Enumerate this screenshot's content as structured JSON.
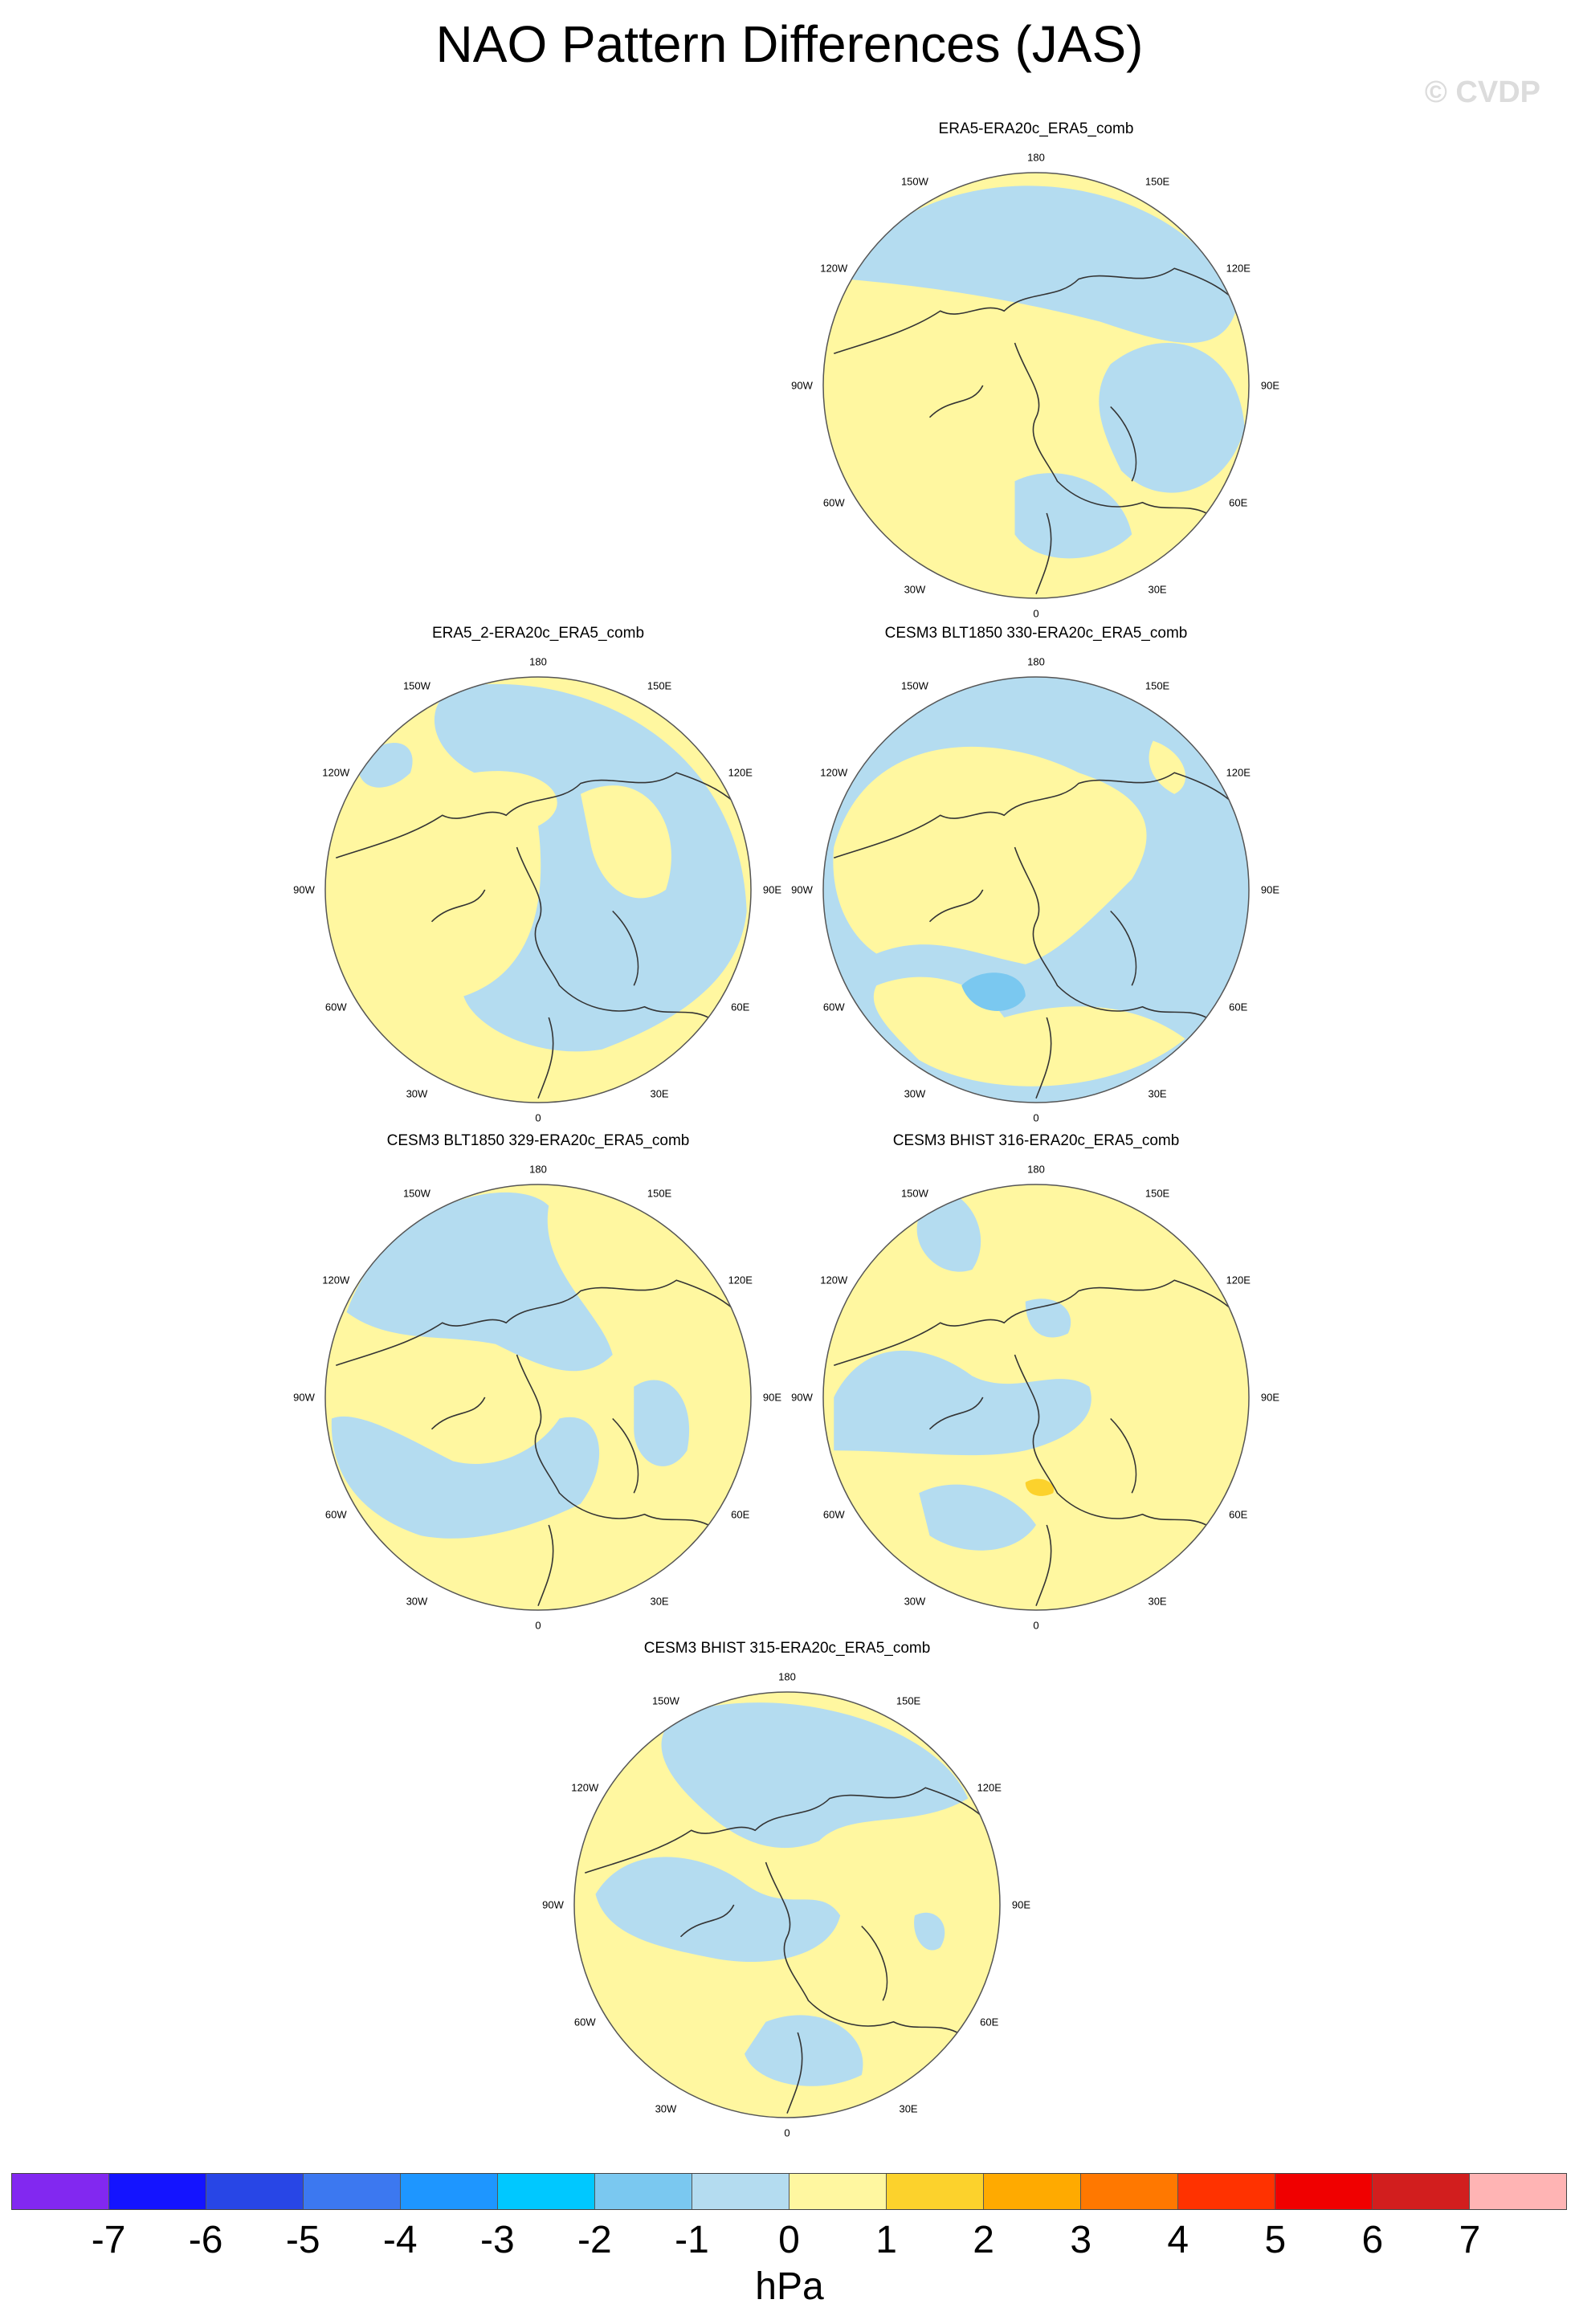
{
  "figure": {
    "title": "NAO Pattern Differences (JAS)",
    "watermark": "© CVDP"
  },
  "lon_labels": {
    "top": "180",
    "bottom": "0",
    "left": "90W",
    "right": "90E",
    "upper_left": "150W",
    "upper_right": "150E",
    "mid_upper_left": "120W",
    "mid_upper_right": "120E",
    "mid_lower_left": "60W",
    "mid_lower_right": "60E",
    "lower_left": "30W",
    "lower_right": "30E"
  },
  "panels": [
    {
      "title": "ERA5-ERA20c_ERA5_comb",
      "pattern": "a"
    },
    {
      "title": "ERA5_2-ERA20c_ERA5_comb",
      "pattern": "b"
    },
    {
      "title": "CESM3 BLT1850 330-ERA20c_ERA5_comb",
      "pattern": "c"
    },
    {
      "title": "CESM3 BLT1850 329-ERA20c_ERA5_comb",
      "pattern": "d"
    },
    {
      "title": "CESM3 BHIST 316-ERA20c_ERA5_comb",
      "pattern": "e"
    },
    {
      "title": "CESM3 BHIST 315-ERA20c_ERA5_comb",
      "pattern": "f"
    }
  ],
  "colors": {
    "positive_small": "#fff7a0",
    "negative_small": "#b4dcf0",
    "neg_2": "#7ac8f0",
    "pos_2": "#fcd22c",
    "coast": "#333333"
  },
  "colorbar": {
    "units": "hPa",
    "colors": [
      "#8228f0",
      "#1414ff",
      "#2846e6",
      "#3c78f0",
      "#1e96ff",
      "#00c8ff",
      "#7ac8f0",
      "#b4dcf0",
      "#fff7a0",
      "#fcd22c",
      "#ffaa00",
      "#ff7800",
      "#ff3200",
      "#f00000",
      "#d21e1e",
      "#ffb4b4"
    ],
    "ticks": [
      "-7",
      "-6",
      "-5",
      "-4",
      "-3",
      "-2",
      "-1",
      "0",
      "1",
      "2",
      "3",
      "4",
      "5",
      "6",
      "7"
    ]
  }
}
